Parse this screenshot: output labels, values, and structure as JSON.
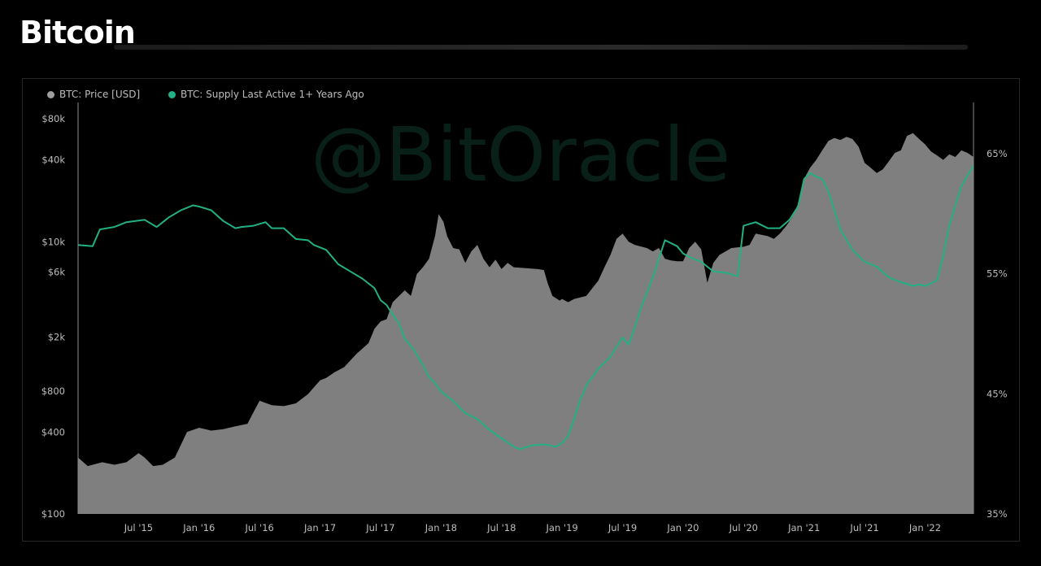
{
  "page": {
    "title": "Bitcoin"
  },
  "legend": [
    {
      "label": "BTC: Price [USD]",
      "color": "#9e9e9e"
    },
    {
      "label": "BTC: Supply Last Active 1+ Years Ago",
      "color": "#23b084"
    }
  ],
  "watermark": "@BitOracle",
  "colors": {
    "price_fill": "#7f7f7f",
    "supply_line": "#23b084",
    "background": "#000000"
  },
  "chart_data": {
    "type": "area",
    "y_left": {
      "scale": "log",
      "ylim": [
        100,
        100000
      ],
      "ticks": [
        {
          "v": 80000,
          "label": "$80k"
        },
        {
          "v": 40000,
          "label": "$40k"
        },
        {
          "v": 10000,
          "label": "$10k"
        },
        {
          "v": 6000,
          "label": "$6k"
        },
        {
          "v": 2000,
          "label": "$2k"
        },
        {
          "v": 800,
          "label": "$800"
        },
        {
          "v": 400,
          "label": "$400"
        },
        {
          "v": 100,
          "label": "$100"
        }
      ]
    },
    "y_right": {
      "scale": "linear",
      "ylim": [
        35,
        69
      ],
      "ticks": [
        {
          "v": 65,
          "label": "65%"
        },
        {
          "v": 55,
          "label": "55%"
        },
        {
          "v": 45,
          "label": "45%"
        },
        {
          "v": 35,
          "label": "35%"
        }
      ]
    },
    "x_range": [
      2015.0,
      2022.4
    ],
    "x_ticks": [
      {
        "v": 2015.5,
        "label": "Jul '15"
      },
      {
        "v": 2016.0,
        "label": "Jan '16"
      },
      {
        "v": 2016.5,
        "label": "Jul '16"
      },
      {
        "v": 2017.0,
        "label": "Jan '17"
      },
      {
        "v": 2017.5,
        "label": "Jul '17"
      },
      {
        "v": 2018.0,
        "label": "Jan '18"
      },
      {
        "v": 2018.5,
        "label": "Jul '18"
      },
      {
        "v": 2019.0,
        "label": "Jan '19"
      },
      {
        "v": 2019.5,
        "label": "Jul '19"
      },
      {
        "v": 2020.0,
        "label": "Jan '20"
      },
      {
        "v": 2020.5,
        "label": "Jul '20"
      },
      {
        "v": 2021.0,
        "label": "Jan '21"
      },
      {
        "v": 2021.5,
        "label": "Jul '21"
      },
      {
        "v": 2022.0,
        "label": "Jan '22"
      }
    ],
    "series": [
      {
        "name": "BTC: Price [USD]",
        "axis": "left",
        "style": "area",
        "x": [
          2015.0,
          2015.08,
          2015.2,
          2015.3,
          2015.4,
          2015.5,
          2015.55,
          2015.62,
          2015.7,
          2015.8,
          2015.9,
          2016.0,
          2016.1,
          2016.2,
          2016.3,
          2016.4,
          2016.45,
          2016.5,
          2016.6,
          2016.7,
          2016.8,
          2016.9,
          2017.0,
          2017.05,
          2017.12,
          2017.2,
          2017.3,
          2017.4,
          2017.45,
          2017.5,
          2017.55,
          2017.6,
          2017.7,
          2017.75,
          2017.8,
          2017.85,
          2017.9,
          2017.95,
          2017.98,
          2018.02,
          2018.05,
          2018.1,
          2018.15,
          2018.2,
          2018.25,
          2018.3,
          2018.35,
          2018.4,
          2018.45,
          2018.5,
          2018.55,
          2018.6,
          2018.7,
          2018.8,
          2018.85,
          2018.88,
          2018.92,
          2018.98,
          2019.0,
          2019.05,
          2019.1,
          2019.2,
          2019.3,
          2019.35,
          2019.4,
          2019.45,
          2019.5,
          2019.55,
          2019.6,
          2019.7,
          2019.75,
          2019.8,
          2019.85,
          2019.9,
          2019.95,
          2020.0,
          2020.05,
          2020.1,
          2020.15,
          2020.2,
          2020.25,
          2020.3,
          2020.4,
          2020.5,
          2020.55,
          2020.6,
          2020.7,
          2020.75,
          2020.8,
          2020.85,
          2020.9,
          2020.95,
          2021.0,
          2021.05,
          2021.1,
          2021.15,
          2021.2,
          2021.25,
          2021.3,
          2021.35,
          2021.4,
          2021.45,
          2021.5,
          2021.55,
          2021.6,
          2021.65,
          2021.7,
          2021.75,
          2021.8,
          2021.85,
          2021.9,
          2021.95,
          2022.0,
          2022.05,
          2022.1,
          2022.15,
          2022.2,
          2022.25,
          2022.3,
          2022.35,
          2022.4
        ],
        "y": [
          260,
          225,
          240,
          230,
          240,
          280,
          260,
          225,
          230,
          260,
          400,
          430,
          410,
          420,
          440,
          460,
          560,
          680,
          630,
          620,
          650,
          760,
          960,
          1000,
          1100,
          1200,
          1500,
          1800,
          2300,
          2600,
          2700,
          3600,
          4400,
          4000,
          5800,
          6500,
          7500,
          11000,
          16000,
          14000,
          11000,
          9000,
          8800,
          7000,
          8500,
          9500,
          7500,
          6500,
          7400,
          6300,
          7000,
          6500,
          6400,
          6300,
          6200,
          5000,
          4000,
          3700,
          3800,
          3600,
          3800,
          4000,
          5200,
          6500,
          8000,
          10500,
          11500,
          10000,
          9500,
          9000,
          8500,
          9000,
          7500,
          7300,
          7200,
          7200,
          9000,
          10000,
          8800,
          5000,
          7000,
          8000,
          9000,
          9200,
          9500,
          11500,
          11000,
          10500,
          11500,
          13000,
          15000,
          19000,
          29000,
          35000,
          40000,
          47000,
          55000,
          58000,
          56000,
          59000,
          57000,
          50000,
          38000,
          35000,
          32000,
          34000,
          39000,
          45000,
          47000,
          60000,
          63000,
          57000,
          52000,
          46000,
          43000,
          40000,
          44000,
          42000,
          47000,
          45000,
          42000
        ]
      },
      {
        "name": "BTC: Supply Last Active 1+ Years Ago",
        "axis": "right",
        "style": "line",
        "x": [
          2015.0,
          2015.12,
          2015.18,
          2015.3,
          2015.4,
          2015.55,
          2015.65,
          2015.75,
          2015.85,
          2015.95,
          2016.0,
          2016.1,
          2016.2,
          2016.3,
          2016.35,
          2016.45,
          2016.55,
          2016.6,
          2016.7,
          2016.8,
          2016.9,
          2016.95,
          2017.05,
          2017.15,
          2017.25,
          2017.35,
          2017.45,
          2017.5,
          2017.55,
          2017.6,
          2017.65,
          2017.7,
          2017.78,
          2017.85,
          2017.9,
          2017.95,
          2018.0,
          2018.05,
          2018.1,
          2018.2,
          2018.3,
          2018.4,
          2018.5,
          2018.6,
          2018.65,
          2018.75,
          2018.85,
          2018.95,
          2019.0,
          2019.05,
          2019.1,
          2019.15,
          2019.2,
          2019.3,
          2019.4,
          2019.5,
          2019.55,
          2019.6,
          2019.65,
          2019.75,
          2019.85,
          2019.95,
          2020.0,
          2020.05,
          2020.15,
          2020.25,
          2020.35,
          2020.45,
          2020.5,
          2020.6,
          2020.7,
          2020.8,
          2020.88,
          2020.95,
          2021.0,
          2021.05,
          2021.1,
          2021.15,
          2021.2,
          2021.3,
          2021.4,
          2021.5,
          2021.6,
          2021.7,
          2021.8,
          2021.9,
          2021.95,
          2022.0,
          2022.05,
          2022.1,
          2022.15,
          2022.2,
          2022.3,
          2022.4
        ],
        "y": [
          57.4,
          57.3,
          58.7,
          58.9,
          59.3,
          59.5,
          58.9,
          59.7,
          60.3,
          60.7,
          60.6,
          60.3,
          59.4,
          58.8,
          58.9,
          59.0,
          59.3,
          58.8,
          58.8,
          57.9,
          57.8,
          57.4,
          57.0,
          55.8,
          55.2,
          54.6,
          53.8,
          52.8,
          52.4,
          51.6,
          50.9,
          49.6,
          48.6,
          47.4,
          46.4,
          45.9,
          45.2,
          44.8,
          44.4,
          43.4,
          42.9,
          42.0,
          41.3,
          40.6,
          40.4,
          40.7,
          40.8,
          40.6,
          40.9,
          41.5,
          42.9,
          44.5,
          45.7,
          47.1,
          48.1,
          49.7,
          49.1,
          50.5,
          52.1,
          54.7,
          57.8,
          57.3,
          56.7,
          56.4,
          56.0,
          55.2,
          55.1,
          54.8,
          59.0,
          59.3,
          58.8,
          58.8,
          59.5,
          60.6,
          62.9,
          63.4,
          63.1,
          62.9,
          61.9,
          58.7,
          57.0,
          56.0,
          55.6,
          54.7,
          54.3,
          54.0,
          54.1,
          54.0,
          54.2,
          54.5,
          56.5,
          59.0,
          62.3,
          64.0
        ]
      }
    ]
  }
}
